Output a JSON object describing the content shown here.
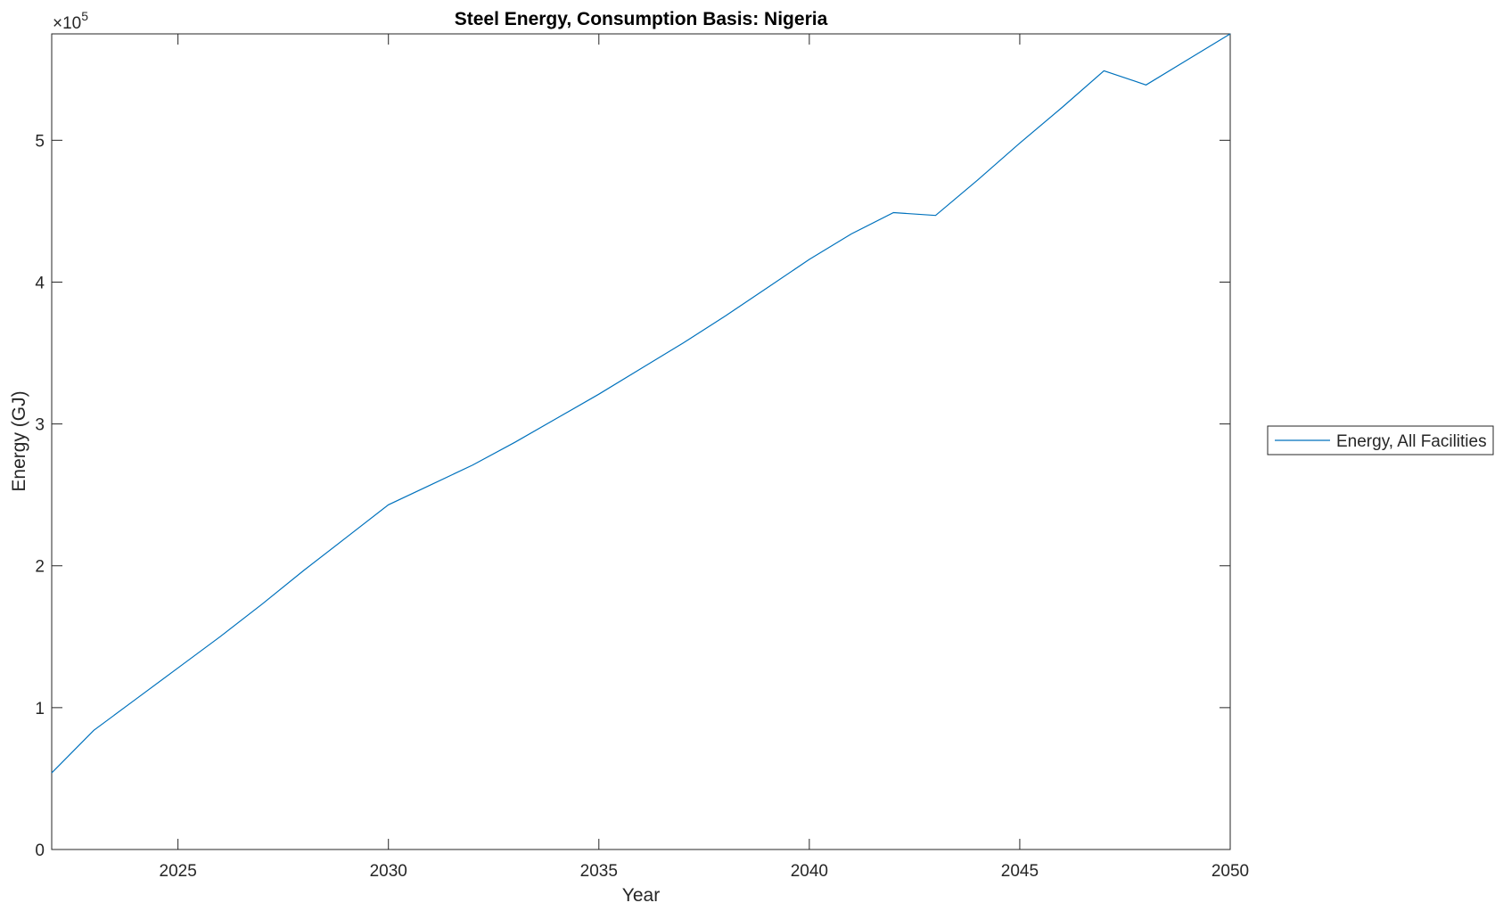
{
  "chart_data": {
    "type": "line",
    "title": "Steel Energy, Consumption Basis: Nigeria",
    "xlabel": "Year",
    "ylabel": "Energy (GJ)",
    "y_exponent_label": "×10",
    "y_exponent": "5",
    "xlim": [
      2022,
      2050
    ],
    "ylim": [
      0,
      575000
    ],
    "x_ticks": [
      2025,
      2030,
      2035,
      2040,
      2045,
      2050
    ],
    "y_ticks": [
      0,
      100000,
      200000,
      300000,
      400000,
      500000
    ],
    "y_tick_labels": [
      "0",
      "1",
      "2",
      "3",
      "4",
      "5"
    ],
    "grid": false,
    "legend_placement": "outside-right",
    "series": [
      {
        "name": "Energy, All Facilities",
        "color": "#0072BD",
        "x": [
          2022,
          2023,
          2024,
          2025,
          2026,
          2027,
          2028,
          2029,
          2030,
          2031,
          2032,
          2033,
          2034,
          2035,
          2036,
          2037,
          2038,
          2039,
          2040,
          2041,
          2042,
          2043,
          2044,
          2045,
          2046,
          2047,
          2048,
          2049,
          2050
        ],
        "y": [
          54000,
          84000,
          106000,
          128000,
          150000,
          173000,
          197000,
          220000,
          243000,
          257000,
          271000,
          287000,
          304000,
          321000,
          339000,
          357000,
          376000,
          396000,
          416000,
          434000,
          449000,
          447000,
          472000,
          498000,
          523000,
          549000,
          539000,
          557000,
          575000
        ]
      }
    ]
  }
}
